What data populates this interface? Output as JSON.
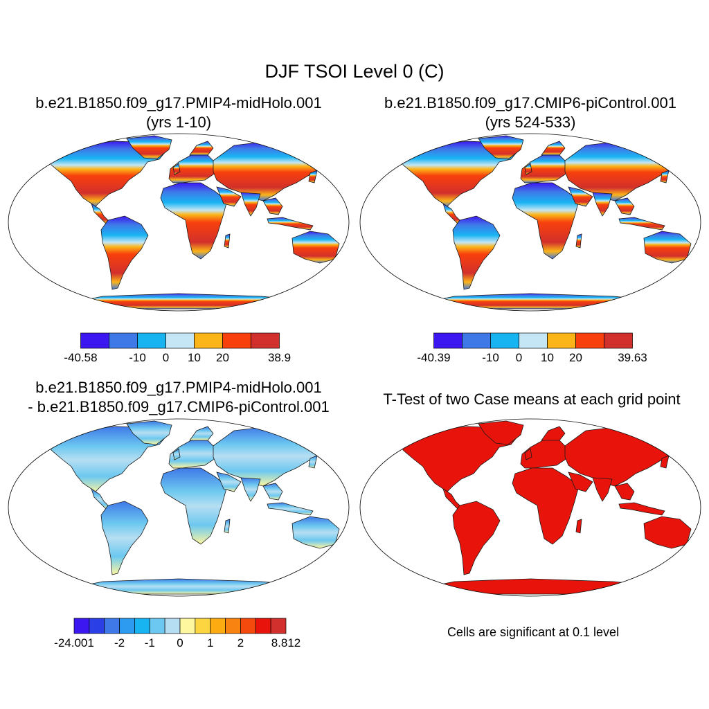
{
  "figure": {
    "title": "DJF TSOI Level 0 (C)"
  },
  "panels": [
    {
      "id": "case1",
      "title_line1": "b.e21.B1850.f09_g17.PMIP4-midHolo.001",
      "title_line2": "(yrs 1-10)",
      "colorbar": {
        "colors": [
          "#3c17f0",
          "#3f79e8",
          "#18b4f2",
          "#c5e6f5",
          "#fbb519",
          "#f8400c",
          "#d2302c"
        ],
        "labels": [
          "-40.58",
          "-10",
          "0",
          "10",
          "20",
          "38.9"
        ],
        "label_boundaries": [
          0,
          2,
          3,
          4,
          5,
          7
        ]
      }
    },
    {
      "id": "case2",
      "title_line1": "b.e21.B1850.f09_g17.CMIP6-piControl.001",
      "title_line2": "(yrs 524-533)",
      "colorbar": {
        "colors": [
          "#3c17f0",
          "#3f79e8",
          "#18b4f2",
          "#c5e6f5",
          "#fbb519",
          "#f8400c",
          "#d2302c"
        ],
        "labels": [
          "-40.39",
          "-10",
          "0",
          "10",
          "20",
          "39.63"
        ],
        "label_boundaries": [
          0,
          2,
          3,
          4,
          5,
          7
        ]
      }
    },
    {
      "id": "diff",
      "title_line1": "b.e21.B1850.f09_g17.PMIP4-midHolo.001",
      "title_line2": "- b.e21.B1850.f09_g17.CMIP6-piControl.001",
      "colorbar": {
        "colors": [
          "#3c17f0",
          "#2a3fe6",
          "#3f79e8",
          "#2d9cf0",
          "#18b4f2",
          "#6cc8f0",
          "#b6def2",
          "#fff7a0",
          "#fdd541",
          "#fcac10",
          "#f98310",
          "#f54a0e",
          "#e8140b",
          "#d2302c"
        ],
        "labels": [
          "-24.001",
          "-2",
          "-1",
          "0",
          "1",
          "2",
          "8.812"
        ],
        "label_boundaries": [
          0,
          3,
          5,
          7,
          9,
          11,
          14
        ]
      }
    },
    {
      "id": "ttest",
      "title_line1": "T-Test of two Case means at each grid point",
      "note": "Cells are significant at 0.1 level"
    }
  ]
}
